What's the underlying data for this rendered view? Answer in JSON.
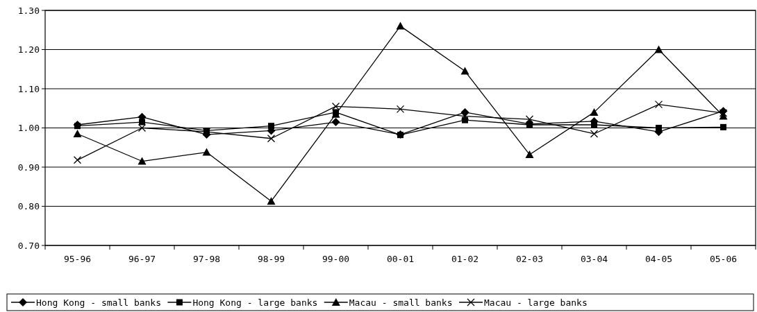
{
  "chart_data": {
    "type": "line",
    "categories": [
      "95-96",
      "96-97",
      "97-98",
      "98-99",
      "99-00",
      "00-01",
      "01-02",
      "02-03",
      "03-04",
      "04-05",
      "05-06"
    ],
    "series": [
      {
        "name": "Hong Kong - small banks",
        "color": "#000000",
        "marker": "diamond",
        "values": [
          1.008,
          1.028,
          0.983,
          0.993,
          1.015,
          0.983,
          1.04,
          1.01,
          1.017,
          0.99,
          1.043
        ]
      },
      {
        "name": "Hong Kong - large banks",
        "color": "#000000",
        "marker": "square",
        "values": [
          1.005,
          1.015,
          0.993,
          1.005,
          1.04,
          0.982,
          1.02,
          1.008,
          1.008,
          1.0,
          1.002
        ]
      },
      {
        "name": "Macau - small banks",
        "color": "#000000",
        "marker": "triangle",
        "values": [
          0.985,
          0.915,
          0.938,
          0.813,
          1.035,
          1.26,
          1.145,
          0.932,
          1.04,
          1.2,
          1.03
        ]
      },
      {
        "name": "Macau - large banks",
        "color": "#000000",
        "marker": "cross",
        "values": [
          0.918,
          1.0,
          0.99,
          0.973,
          1.055,
          1.048,
          1.03,
          1.022,
          0.985,
          1.06,
          1.038
        ]
      }
    ],
    "ylim": [
      0.7,
      1.3
    ],
    "yticks": [
      {
        "value": 0.7,
        "label": "0.70"
      },
      {
        "value": 0.8,
        "label": "0.80"
      },
      {
        "value": 0.9,
        "label": "0.90"
      },
      {
        "value": 1.0,
        "label": "1.00"
      },
      {
        "value": 1.1,
        "label": "1.10"
      },
      {
        "value": 1.2,
        "label": "1.20"
      },
      {
        "value": 1.3,
        "label": "1.30"
      }
    ],
    "grid": "y",
    "legend": "bottom"
  }
}
